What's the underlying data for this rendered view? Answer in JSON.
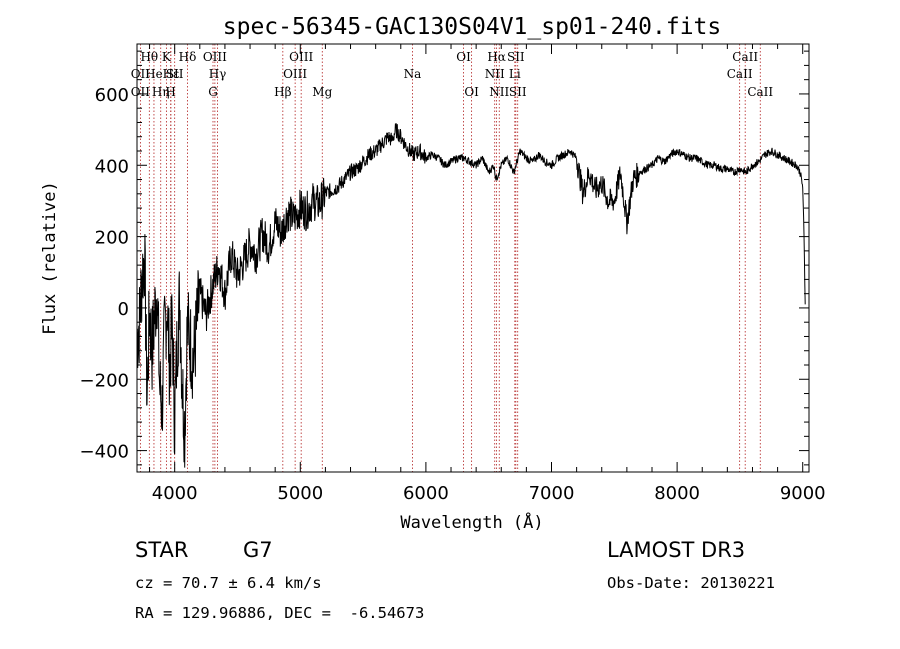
{
  "chart_data": {
    "type": "line",
    "title": "spec-56345-GAC130S04V1_sp01-240.fits",
    "xlabel": "Wavelength (Å)",
    "ylabel": "Flux (relative)",
    "xlim": [
      3700,
      9050
    ],
    "ylim": [
      -460,
      740
    ],
    "xticks": [
      4000,
      5000,
      6000,
      7000,
      8000,
      9000
    ],
    "yticks": [
      -400,
      -200,
      0,
      200,
      400,
      600
    ],
    "series": [
      {
        "name": "flux",
        "x": [
          3700,
          3720,
          3740,
          3760,
          3780,
          3800,
          3820,
          3840,
          3860,
          3880,
          3900,
          3920,
          3940,
          3960,
          3980,
          4000,
          4020,
          4040,
          4060,
          4080,
          4100,
          4150,
          4200,
          4250,
          4300,
          4350,
          4400,
          4450,
          4500,
          4550,
          4600,
          4650,
          4700,
          4750,
          4800,
          4850,
          4900,
          4950,
          5000,
          5050,
          5100,
          5150,
          5200,
          5250,
          5300,
          5350,
          5400,
          5450,
          5500,
          5550,
          5600,
          5650,
          5700,
          5730,
          5760,
          5800,
          5850,
          5900,
          5950,
          6000,
          6050,
          6100,
          6150,
          6200,
          6250,
          6300,
          6350,
          6400,
          6450,
          6500,
          6540,
          6560,
          6580,
          6600,
          6650,
          6700,
          6750,
          6800,
          6850,
          6900,
          6950,
          7000,
          7050,
          7100,
          7150,
          7200,
          7250,
          7300,
          7350,
          7400,
          7450,
          7500,
          7550,
          7600,
          7650,
          7700,
          7750,
          7800,
          7850,
          7900,
          7950,
          8000,
          8050,
          8100,
          8150,
          8200,
          8250,
          8300,
          8350,
          8400,
          8450,
          8500,
          8550,
          8600,
          8650,
          8700,
          8750,
          8800,
          8850,
          8900,
          8950,
          8980,
          9000,
          9010,
          9020
        ],
        "y": [
          -80,
          -40,
          90,
          150,
          -250,
          -10,
          -120,
          -20,
          60,
          -220,
          -280,
          -60,
          10,
          -170,
          -40,
          -320,
          -90,
          30,
          -210,
          -340,
          -50,
          -150,
          40,
          -20,
          60,
          120,
          40,
          150,
          90,
          130,
          180,
          150,
          210,
          170,
          240,
          210,
          270,
          250,
          280,
          270,
          300,
          290,
          320,
          330,
          340,
          360,
          380,
          390,
          410,
          430,
          440,
          460,
          480,
          470,
          500,
          480,
          450,
          430,
          440,
          420,
          430,
          420,
          400,
          410,
          420,
          420,
          410,
          400,
          420,
          380,
          400,
          360,
          380,
          400,
          420,
          380,
          440,
          420,
          410,
          430,
          410,
          400,
          420,
          430,
          440,
          420,
          320,
          380,
          330,
          350,
          300,
          300,
          380,
          240,
          360,
          380,
          390,
          400,
          420,
          410,
          430,
          440,
          430,
          420,
          420,
          410,
          400,
          400,
          390,
          390,
          380,
          390,
          380,
          400,
          410,
          430,
          440,
          430,
          420,
          410,
          400,
          380,
          340,
          200,
          10
        ]
      }
    ],
    "spectral_lines": [
      {
        "label": "OII",
        "wl": 3727,
        "row": 2
      },
      {
        "label": "OII",
        "wl": 3727,
        "row": 3
      },
      {
        "label": "Hθ",
        "wl": 3798,
        "row": 1
      },
      {
        "label": "He",
        "wl": 3835,
        "row": 2
      },
      {
        "label": "Hη",
        "wl": 3889,
        "row": 3
      },
      {
        "label": "K",
        "wl": 3934,
        "row": 1
      },
      {
        "label": "Hε",
        "wl": 3970,
        "row": 2
      },
      {
        "label": "SII",
        "wl": 4000,
        "row": 2
      },
      {
        "label": "H",
        "wl": 3968,
        "row": 3
      },
      {
        "label": "Hδ",
        "wl": 4102,
        "row": 1
      },
      {
        "label": "OIII",
        "wl": 4320,
        "row": 1
      },
      {
        "label": "Hγ",
        "wl": 4341,
        "row": 2
      },
      {
        "label": "G",
        "wl": 4305,
        "row": 3
      },
      {
        "label": "Hβ",
        "wl": 4861,
        "row": 3
      },
      {
        "label": "OIII",
        "wl": 5007,
        "row": 1
      },
      {
        "label": "OIII",
        "wl": 4959,
        "row": 2
      },
      {
        "label": "Mg",
        "wl": 5175,
        "row": 3
      },
      {
        "label": "Na",
        "wl": 5893,
        "row": 2
      },
      {
        "label": "OI",
        "wl": 6300,
        "row": 1
      },
      {
        "label": "OI",
        "wl": 6364,
        "row": 3
      },
      {
        "label": "Hα",
        "wl": 6563,
        "row": 1
      },
      {
        "label": "SII",
        "wl": 6716,
        "row": 1
      },
      {
        "label": "NII",
        "wl": 6548,
        "row": 2
      },
      {
        "label": "Li",
        "wl": 6708,
        "row": 2
      },
      {
        "label": "NII",
        "wl": 6584,
        "row": 3
      },
      {
        "label": "SII",
        "wl": 6731,
        "row": 3
      },
      {
        "label": "CaII",
        "wl": 8542,
        "row": 1
      },
      {
        "label": "CaII",
        "wl": 8498,
        "row": 2
      },
      {
        "label": "CaII",
        "wl": 8662,
        "row": 3
      }
    ]
  },
  "info": {
    "class": "STAR",
    "subclass": "G7",
    "survey": "LAMOST DR3",
    "cz": "cz = 70.7 ± 6.4 km/s",
    "obsdate": "Obs-Date: 20130221",
    "radec": "RA = 129.96886, DEC =  -6.54673"
  },
  "colors": {
    "line_marker": "#b22222",
    "spectrum": "#000000"
  }
}
